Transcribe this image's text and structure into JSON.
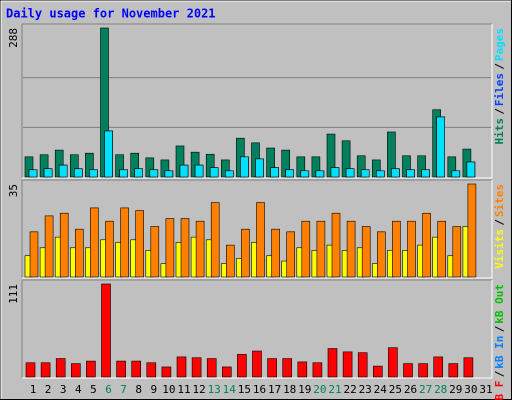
{
  "chart_data": [
    {
      "type": "bar",
      "title": "Daily usage for November 2021",
      "categories": [
        "1",
        "2",
        "3",
        "4",
        "5",
        "6",
        "7",
        "8",
        "9",
        "10",
        "11",
        "12",
        "13",
        "14",
        "15",
        "16",
        "17",
        "18",
        "19",
        "20",
        "21",
        "22",
        "23",
        "24",
        "25",
        "26",
        "27",
        "28",
        "29",
        "30",
        "31"
      ],
      "weekend_label_color": "#00805c",
      "weekend": [
        6,
        7,
        13,
        14,
        20,
        21,
        27,
        28
      ],
      "ylim": [
        0,
        288
      ],
      "yticks": [
        288
      ],
      "grid_lines": [
        96,
        192
      ],
      "legend_separator": "/",
      "series": [
        {
          "name": "Hits",
          "color": "#00805c",
          "values": [
            39,
            43,
            52,
            43,
            46,
            288,
            43,
            46,
            37,
            33,
            60,
            48,
            44,
            33,
            75,
            66,
            56,
            52,
            39,
            39,
            83,
            70,
            41,
            33,
            87,
            41,
            41,
            130,
            39,
            54,
            null
          ]
        },
        {
          "name": "Files",
          "color": "#0040ff",
          "values": [
            14,
            16,
            23,
            16,
            14,
            89,
            14,
            16,
            14,
            12,
            23,
            23,
            18,
            12,
            39,
            35,
            18,
            14,
            12,
            12,
            18,
            16,
            14,
            12,
            16,
            14,
            14,
            116,
            12,
            29,
            null
          ]
        },
        {
          "name": "Pages",
          "color": "#00e0ff",
          "values": [
            14,
            16,
            23,
            16,
            14,
            89,
            14,
            16,
            14,
            12,
            23,
            23,
            18,
            12,
            39,
            35,
            18,
            14,
            12,
            12,
            18,
            16,
            14,
            12,
            16,
            14,
            14,
            116,
            12,
            29,
            null
          ]
        }
      ]
    },
    {
      "type": "bar",
      "ylim": [
        0,
        35
      ],
      "yticks": [
        35
      ],
      "series": [
        {
          "name": "Visits",
          "color": "#ffff00",
          "values": [
            8,
            11,
            15,
            11,
            11,
            14,
            13,
            14,
            10,
            5,
            13,
            15,
            14,
            5,
            7,
            13,
            8,
            6,
            11,
            10,
            12,
            10,
            11,
            5,
            10,
            10,
            12,
            15,
            8,
            19,
            null
          ]
        },
        {
          "name": "Sites",
          "color": "#ff8000",
          "values": [
            17,
            23,
            24,
            18,
            26,
            21,
            26,
            25,
            19,
            22,
            22,
            21,
            28,
            12,
            18,
            28,
            18,
            17,
            21,
            21,
            24,
            21,
            19,
            17,
            21,
            21,
            24,
            21,
            19,
            35,
            null
          ]
        }
      ]
    },
    {
      "type": "bar",
      "ylim": [
        0,
        111
      ],
      "yticks": [
        111
      ],
      "series": [
        {
          "name": "kB F",
          "color": "#ff0000",
          "values": [
            17,
            17,
            22,
            16,
            19,
            111,
            19,
            19,
            17,
            12,
            24,
            23,
            22,
            12,
            27,
            31,
            22,
            22,
            18,
            17,
            34,
            30,
            29,
            13,
            35,
            16,
            16,
            24,
            16,
            23,
            null
          ]
        }
      ],
      "legend": [
        {
          "label": "kB In",
          "color": "#0080ff"
        },
        {
          "label": "kB Out",
          "color": "#00c000"
        }
      ]
    }
  ]
}
